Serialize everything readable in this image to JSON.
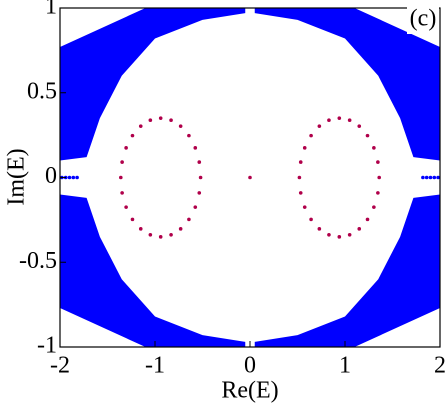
{
  "chart_data": {
    "type": "scatter",
    "panel_label": "(c)",
    "x_label": "Re(E)",
    "y_label": "Im(E)",
    "xlim": [
      -2,
      2
    ],
    "ylim": [
      -1,
      1
    ],
    "xticks": [
      -2,
      -1,
      0,
      1,
      2
    ],
    "yticks": [
      -1,
      -0.5,
      0,
      0.5,
      1
    ],
    "series": [
      {
        "color": "#0000ff",
        "mode": "area",
        "x": [
          -2,
          -1.1,
          -0.05,
          -0.05,
          -0.5,
          -1,
          -1.35,
          -1.58,
          -1.72,
          -2,
          null,
          2,
          1.1,
          0.05,
          0.05,
          0.5,
          1,
          1.35,
          1.58,
          1.72,
          2,
          null,
          -2,
          -1.1,
          -0.05,
          -0.05,
          -0.5,
          -1,
          -1.35,
          -1.58,
          -1.72,
          -2,
          null,
          2,
          1.1,
          0.05,
          0.05,
          0.5,
          1,
          1.35,
          1.58,
          1.72,
          2
        ],
        "y": [
          0.77,
          1,
          1,
          0.97,
          0.93,
          0.82,
          0.6,
          0.35,
          0.12,
          0.1,
          null,
          0.77,
          1,
          1,
          0.97,
          0.93,
          0.82,
          0.6,
          0.35,
          0.12,
          0.1,
          null,
          -0.77,
          -1,
          -1,
          -0.97,
          -0.93,
          -0.82,
          -0.6,
          -0.35,
          -0.12,
          -0.1,
          null,
          -0.77,
          -1,
          -1,
          -0.97,
          -0.93,
          -0.82,
          -0.6,
          -0.35,
          -0.12,
          -0.1
        ]
      },
      {
        "color": "#0000ff",
        "mode": "markers",
        "x": [
          -1.98,
          -1.94,
          -1.9,
          -1.86,
          -1.82,
          1.82,
          1.86,
          1.9,
          1.94,
          1.98
        ],
        "y": [
          0,
          0,
          0,
          0,
          0,
          0,
          0,
          0,
          0,
          0
        ]
      },
      {
        "color": "#b0004a",
        "mode": "markers",
        "x": [
          0,
          1.36,
          1.346,
          1.304,
          1.237,
          1.15,
          1.049,
          0.94,
          0.831,
          0.73,
          0.643,
          0.576,
          0.534,
          0.52,
          0.534,
          0.576,
          0.643,
          0.73,
          0.831,
          0.94,
          1.049,
          1.15,
          1.237,
          1.304,
          1.346,
          -1.36,
          -1.346,
          -1.304,
          -1.237,
          -1.15,
          -1.049,
          -0.94,
          -0.831,
          -0.73,
          -0.643,
          -0.576,
          -0.534,
          -0.52,
          -0.534,
          -0.576,
          -0.643,
          -0.73,
          -0.831,
          -0.94,
          -1.049,
          -1.15,
          -1.237,
          -1.304,
          -1.346
        ],
        "y": [
          0,
          0,
          0.091,
          0.175,
          0.247,
          0.303,
          0.338,
          0.35,
          0.338,
          0.303,
          0.247,
          0.175,
          0.091,
          0,
          -0.091,
          -0.175,
          -0.247,
          -0.303,
          -0.338,
          -0.35,
          -0.338,
          -0.303,
          -0.247,
          -0.175,
          -0.091,
          0,
          0.091,
          0.175,
          0.247,
          0.303,
          0.338,
          0.35,
          0.338,
          0.303,
          0.247,
          0.175,
          0.091,
          0,
          -0.091,
          -0.175,
          -0.247,
          -0.303,
          -0.338,
          -0.35,
          -0.338,
          -0.303,
          -0.247,
          -0.175,
          -0.091
        ]
      }
    ]
  }
}
